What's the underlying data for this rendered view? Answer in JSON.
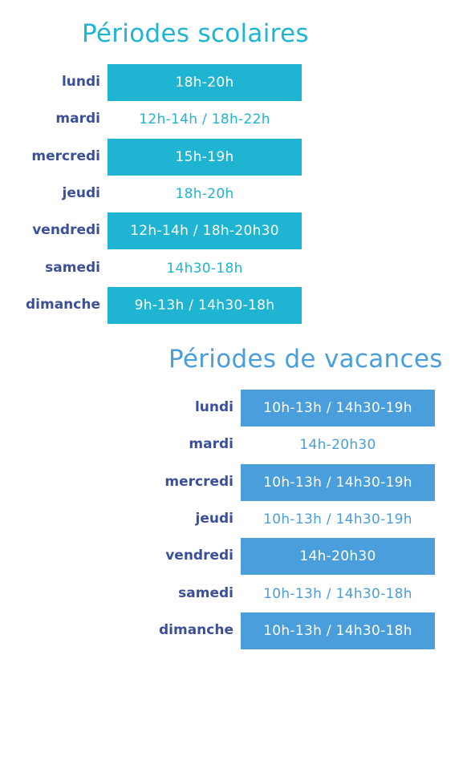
{
  "sections": [
    {
      "title": "Périodes scolaires",
      "rows": [
        {
          "day": "lundi",
          "hours": "18h-20h"
        },
        {
          "day": "mardi",
          "hours": "12h-14h / 18h-22h"
        },
        {
          "day": "mercredi",
          "hours": "15h-19h"
        },
        {
          "day": "jeudi",
          "hours": "18h-20h"
        },
        {
          "day": "vendredi",
          "hours": "12h-14h / 18h-20h30"
        },
        {
          "day": "samedi",
          "hours": "14h30-18h"
        },
        {
          "day": "dimanche",
          "hours": "9h-13h / 14h30-18h"
        }
      ]
    },
    {
      "title": "Périodes de vacances",
      "rows": [
        {
          "day": "lundi",
          "hours": "10h-13h / 14h30-19h"
        },
        {
          "day": "mardi",
          "hours": "14h-20h30"
        },
        {
          "day": "mercredi",
          "hours": "10h-13h / 14h30-19h"
        },
        {
          "day": "jeudi",
          "hours": "10h-13h / 14h30-19h"
        },
        {
          "day": "vendredi",
          "hours": "14h-20h30"
        },
        {
          "day": "samedi",
          "hours": "10h-13h / 14h30-18h"
        },
        {
          "day": "dimanche",
          "hours": "10h-13h / 14h30-18h"
        }
      ]
    }
  ]
}
